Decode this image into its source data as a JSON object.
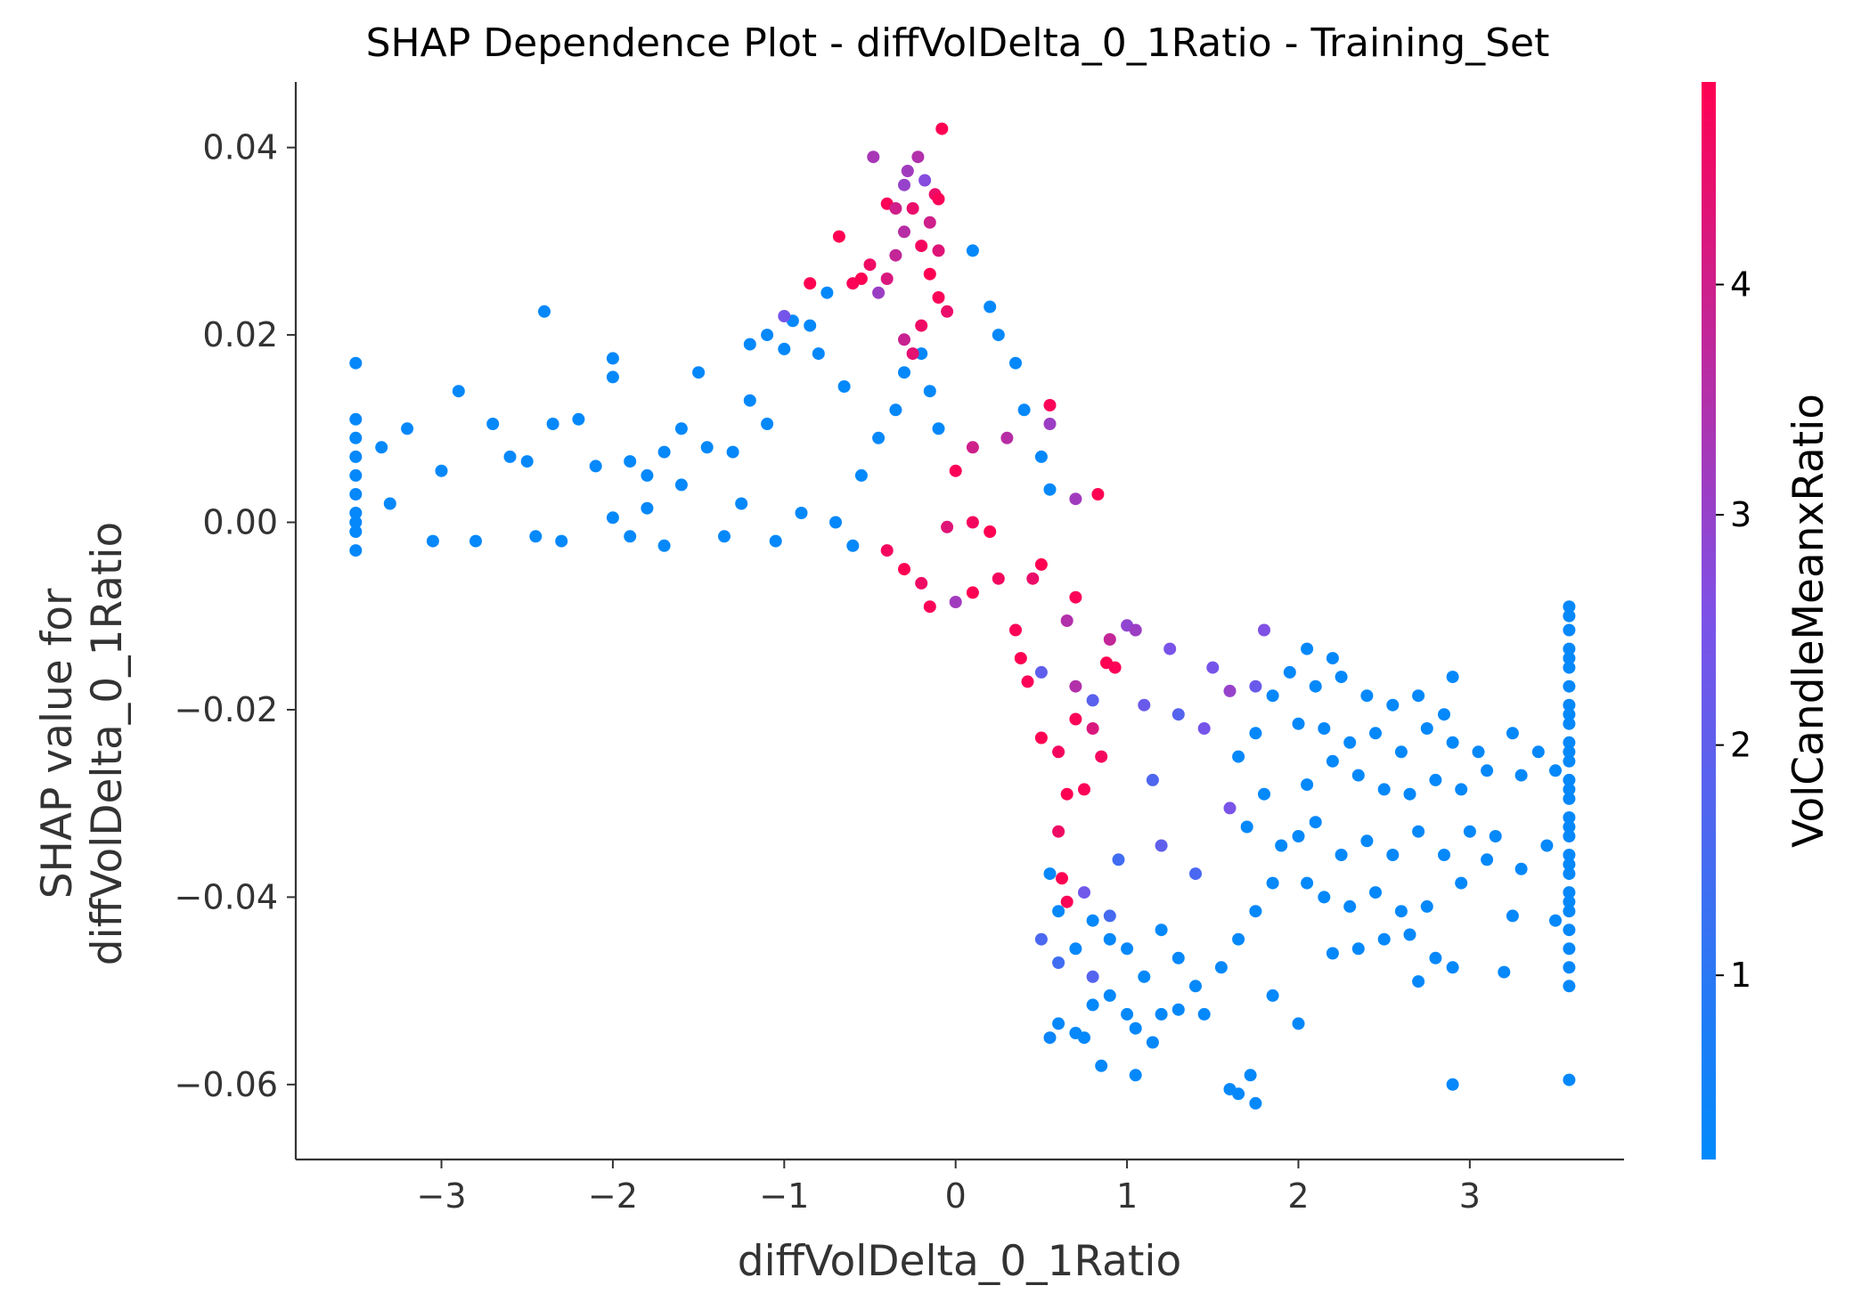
{
  "chart_data": {
    "type": "scatter",
    "title": "SHAP Dependence Plot - diffVolDelta_0_1Ratio - Training_Set",
    "xlabel": "diffVolDelta_0_1Ratio",
    "ylabel_line1": "SHAP value for",
    "ylabel_line2": "diffVolDelta_0_1Ratio",
    "colorbar_label": "VolCandleMeanxRatio",
    "xlim": [
      -3.85,
      3.9
    ],
    "ylim": [
      -0.068,
      0.047
    ],
    "x_ticks": [
      {
        "value": -3,
        "label": "−3"
      },
      {
        "value": -2,
        "label": "−2"
      },
      {
        "value": -1,
        "label": "−1"
      },
      {
        "value": 0,
        "label": "0"
      },
      {
        "value": 1,
        "label": "1"
      },
      {
        "value": 2,
        "label": "2"
      },
      {
        "value": 3,
        "label": "3"
      }
    ],
    "y_ticks": [
      {
        "value": 0.04,
        "label": "0.04"
      },
      {
        "value": 0.02,
        "label": "0.02"
      },
      {
        "value": 0.0,
        "label": "0.00"
      },
      {
        "value": -0.02,
        "label": "−0.02"
      },
      {
        "value": -0.04,
        "label": "−0.04"
      },
      {
        "value": -0.06,
        "label": "−0.06"
      }
    ],
    "colorbar": {
      "min": 0.2,
      "max": 4.88,
      "ticks": [
        {
          "value": 1,
          "label": "1"
        },
        {
          "value": 2,
          "label": "2"
        },
        {
          "value": 3,
          "label": "3"
        },
        {
          "value": 4,
          "label": "4"
        }
      ],
      "color_low": "#008afb",
      "color_mid": "#7c52e8",
      "color_high": "#ff0052"
    },
    "grid": false,
    "legend": "colorbar-right",
    "points": [
      [
        -3.5,
        0.017,
        0.3
      ],
      [
        -3.5,
        0.011,
        0.3
      ],
      [
        -3.5,
        0.009,
        0.3
      ],
      [
        -3.5,
        0.007,
        0.3
      ],
      [
        -3.5,
        0.005,
        0.3
      ],
      [
        -3.5,
        0.003,
        0.3
      ],
      [
        -3.5,
        0.0,
        0.3
      ],
      [
        -3.5,
        -0.003,
        0.3
      ],
      [
        -3.5,
        -0.001,
        0.3
      ],
      [
        -3.5,
        0.001,
        0.3
      ],
      [
        -3.35,
        0.008,
        0.3
      ],
      [
        -3.2,
        0.01,
        0.3
      ],
      [
        -3.3,
        0.002,
        0.3
      ],
      [
        -3.0,
        0.0055,
        0.3
      ],
      [
        -2.9,
        0.014,
        0.3
      ],
      [
        -3.05,
        -0.002,
        0.3
      ],
      [
        -2.8,
        -0.002,
        0.3
      ],
      [
        -2.7,
        0.0105,
        0.3
      ],
      [
        -2.6,
        0.007,
        0.3
      ],
      [
        -2.5,
        0.0065,
        0.3
      ],
      [
        -2.4,
        0.0225,
        0.3
      ],
      [
        -2.35,
        0.0105,
        0.3
      ],
      [
        -2.2,
        0.011,
        0.3
      ],
      [
        -2.3,
        -0.002,
        0.3
      ],
      [
        -2.45,
        -0.0015,
        0.3
      ],
      [
        -2.1,
        0.006,
        0.3
      ],
      [
        -2.0,
        0.0175,
        0.3
      ],
      [
        -2.0,
        0.0155,
        0.3
      ],
      [
        -2.0,
        0.0005,
        0.3
      ],
      [
        -1.9,
        0.0065,
        0.3
      ],
      [
        -1.8,
        0.005,
        0.3
      ],
      [
        -1.7,
        0.0075,
        0.3
      ],
      [
        -1.6,
        0.004,
        0.3
      ],
      [
        -1.5,
        0.016,
        0.3
      ],
      [
        -1.45,
        0.008,
        0.3
      ],
      [
        -1.3,
        0.0075,
        0.3
      ],
      [
        -1.2,
        0.013,
        0.3
      ],
      [
        -1.1,
        0.0105,
        0.3
      ],
      [
        -1.0,
        0.0185,
        0.3
      ],
      [
        -0.95,
        0.0215,
        0.3
      ],
      [
        -0.85,
        0.021,
        0.3
      ],
      [
        -0.8,
        0.018,
        0.3
      ],
      [
        -0.75,
        0.0245,
        0.3
      ],
      [
        -0.65,
        0.0145,
        0.3
      ],
      [
        -1.1,
        0.02,
        0.3
      ],
      [
        -1.2,
        0.019,
        0.3
      ],
      [
        -1.6,
        0.01,
        0.3
      ],
      [
        -1.35,
        -0.0015,
        0.3
      ],
      [
        -1.7,
        -0.0025,
        0.3
      ],
      [
        -1.8,
        0.0015,
        0.3
      ],
      [
        -1.9,
        -0.0015,
        0.3
      ],
      [
        -1.25,
        0.002,
        0.3
      ],
      [
        -1.05,
        -0.002,
        0.3
      ],
      [
        -0.9,
        0.001,
        0.3
      ],
      [
        -0.7,
        0.0,
        0.3
      ],
      [
        -0.6,
        -0.0025,
        0.3
      ],
      [
        -0.55,
        0.005,
        0.3
      ],
      [
        -0.45,
        0.009,
        0.3
      ],
      [
        -0.35,
        0.012,
        0.3
      ],
      [
        -0.3,
        0.016,
        0.3
      ],
      [
        -0.2,
        0.018,
        0.3
      ],
      [
        -0.15,
        0.014,
        0.3
      ],
      [
        -0.1,
        0.01,
        0.3
      ],
      [
        0.1,
        0.029,
        0.3
      ],
      [
        0.2,
        0.023,
        0.3
      ],
      [
        0.25,
        0.02,
        0.3
      ],
      [
        0.35,
        0.017,
        0.3
      ],
      [
        0.4,
        0.012,
        0.3
      ],
      [
        0.5,
        0.007,
        0.3
      ],
      [
        0.55,
        0.0035,
        0.3
      ],
      [
        -0.68,
        0.0305,
        4.9
      ],
      [
        -0.6,
        0.0255,
        4.8
      ],
      [
        -0.55,
        0.026,
        4.9
      ],
      [
        -0.5,
        0.0275,
        4.6
      ],
      [
        -0.48,
        0.039,
        3.3
      ],
      [
        -0.4,
        0.034,
        4.8
      ],
      [
        -0.35,
        0.0335,
        4.0
      ],
      [
        -0.3,
        0.036,
        3.0
      ],
      [
        -0.28,
        0.0375,
        3.2
      ],
      [
        -0.22,
        0.039,
        3.5
      ],
      [
        -0.18,
        0.0365,
        2.7
      ],
      [
        -0.12,
        0.035,
        4.5
      ],
      [
        -0.08,
        0.042,
        4.9
      ],
      [
        -0.1,
        0.0345,
        4.8
      ],
      [
        -0.25,
        0.0335,
        4.5
      ],
      [
        -0.15,
        0.032,
        4.0
      ],
      [
        -0.3,
        0.031,
        3.6
      ],
      [
        -0.2,
        0.0295,
        4.7
      ],
      [
        -0.1,
        0.029,
        4.3
      ],
      [
        -0.35,
        0.0285,
        3.8
      ],
      [
        -0.4,
        0.026,
        4.2
      ],
      [
        -0.45,
        0.0245,
        3.1
      ],
      [
        -0.15,
        0.0265,
        4.9
      ],
      [
        -0.1,
        0.024,
        4.8
      ],
      [
        -0.05,
        0.0225,
        4.5
      ],
      [
        -0.2,
        0.021,
        4.6
      ],
      [
        -0.3,
        0.0195,
        3.9
      ],
      [
        -0.25,
        0.018,
        4.4
      ],
      [
        -0.85,
        0.0255,
        4.9
      ],
      [
        -1.0,
        0.022,
        2.4
      ],
      [
        0.55,
        0.0125,
        4.8
      ],
      [
        0.55,
        0.0105,
        3.1
      ],
      [
        0.7,
        0.0025,
        3.2
      ],
      [
        0.83,
        0.003,
        4.9
      ],
      [
        0.3,
        0.009,
        3.6
      ],
      [
        0.1,
        0.008,
        4.0
      ],
      [
        0.0,
        0.0055,
        4.8
      ],
      [
        -0.05,
        -0.0005,
        4.3
      ],
      [
        0.1,
        0.0,
        4.7
      ],
      [
        0.2,
        -0.001,
        4.9
      ],
      [
        -0.4,
        -0.003,
        4.7
      ],
      [
        -0.3,
        -0.005,
        4.9
      ],
      [
        -0.2,
        -0.0065,
        4.6
      ],
      [
        -0.15,
        -0.009,
        4.8
      ],
      [
        0.0,
        -0.0085,
        3.2
      ],
      [
        0.1,
        -0.0075,
        4.9
      ],
      [
        0.25,
        -0.006,
        4.7
      ],
      [
        0.35,
        -0.0115,
        4.8
      ],
      [
        0.38,
        -0.0145,
        4.9
      ],
      [
        0.42,
        -0.017,
        4.8
      ],
      [
        0.5,
        -0.023,
        4.9
      ],
      [
        0.6,
        -0.0245,
        4.7
      ],
      [
        0.7,
        -0.021,
        4.8
      ],
      [
        0.65,
        -0.029,
        4.9
      ],
      [
        0.75,
        -0.0285,
        4.8
      ],
      [
        0.6,
        -0.033,
        4.6
      ],
      [
        0.62,
        -0.038,
        4.9
      ],
      [
        0.65,
        -0.0405,
        4.8
      ],
      [
        0.88,
        -0.015,
        4.9
      ],
      [
        0.93,
        -0.0155,
        4.8
      ],
      [
        0.8,
        -0.022,
        4.2
      ],
      [
        0.85,
        -0.025,
        4.7
      ],
      [
        0.7,
        -0.008,
        4.8
      ],
      [
        0.65,
        -0.0105,
        3.5
      ],
      [
        0.5,
        -0.0045,
        4.9
      ],
      [
        0.45,
        -0.006,
        4.5
      ],
      [
        0.9,
        -0.0125,
        3.8
      ],
      [
        1.0,
        -0.011,
        2.9
      ],
      [
        1.05,
        -0.0115,
        3.1
      ],
      [
        1.25,
        -0.0135,
        2.5
      ],
      [
        1.5,
        -0.0155,
        2.4
      ],
      [
        1.6,
        -0.018,
        3.0
      ],
      [
        1.75,
        -0.0175,
        2.2
      ],
      [
        1.8,
        -0.0115,
        2.6
      ],
      [
        0.5,
        -0.016,
        2.0
      ],
      [
        0.7,
        -0.0175,
        3.5
      ],
      [
        0.8,
        -0.019,
        1.9
      ],
      [
        1.1,
        -0.0195,
        2.2
      ],
      [
        1.3,
        -0.0205,
        1.8
      ],
      [
        1.45,
        -0.022,
        2.4
      ],
      [
        1.15,
        -0.0275,
        1.7
      ],
      [
        1.2,
        -0.0345,
        2.0
      ],
      [
        1.4,
        -0.0375,
        1.6
      ],
      [
        1.6,
        -0.0305,
        2.5
      ],
      [
        0.9,
        -0.042,
        1.5
      ],
      [
        0.95,
        -0.036,
        1.4
      ],
      [
        0.75,
        -0.0395,
        2.3
      ],
      [
        0.5,
        -0.0445,
        1.6
      ],
      [
        0.6,
        -0.047,
        1.4
      ],
      [
        0.8,
        -0.0485,
        1.8
      ],
      [
        0.55,
        -0.055,
        0.4
      ],
      [
        0.6,
        -0.0535,
        0.3
      ],
      [
        0.7,
        -0.0545,
        0.3
      ],
      [
        0.75,
        -0.055,
        0.3
      ],
      [
        0.8,
        -0.0515,
        0.3
      ],
      [
        0.9,
        -0.0505,
        0.3
      ],
      [
        1.0,
        -0.0525,
        0.3
      ],
      [
        1.05,
        -0.054,
        0.3
      ],
      [
        1.15,
        -0.0555,
        0.3
      ],
      [
        1.3,
        -0.052,
        0.3
      ],
      [
        0.85,
        -0.058,
        0.3
      ],
      [
        1.05,
        -0.059,
        0.3
      ],
      [
        1.6,
        -0.0605,
        0.3
      ],
      [
        1.65,
        -0.061,
        0.3
      ],
      [
        1.72,
        -0.059,
        0.3
      ],
      [
        1.75,
        -0.062,
        0.3
      ],
      [
        1.2,
        -0.0525,
        0.3
      ],
      [
        1.45,
        -0.0525,
        0.3
      ],
      [
        1.85,
        -0.0505,
        0.3
      ],
      [
        2.0,
        -0.0535,
        0.3
      ],
      [
        2.2,
        -0.046,
        0.3
      ],
      [
        2.35,
        -0.0455,
        0.3
      ],
      [
        2.5,
        -0.0445,
        0.3
      ],
      [
        2.65,
        -0.044,
        0.3
      ],
      [
        2.7,
        -0.049,
        0.3
      ],
      [
        2.8,
        -0.0465,
        0.3
      ],
      [
        2.9,
        -0.0475,
        0.3
      ],
      [
        2.9,
        -0.06,
        0.3
      ],
      [
        3.2,
        -0.048,
        0.3
      ],
      [
        3.25,
        -0.042,
        0.3
      ],
      [
        2.05,
        -0.0385,
        0.3
      ],
      [
        2.15,
        -0.04,
        0.3
      ],
      [
        2.3,
        -0.041,
        0.3
      ],
      [
        2.45,
        -0.0395,
        0.3
      ],
      [
        2.6,
        -0.0415,
        0.3
      ],
      [
        2.75,
        -0.041,
        0.3
      ],
      [
        2.95,
        -0.0385,
        0.3
      ],
      [
        3.1,
        -0.036,
        0.3
      ],
      [
        3.3,
        -0.037,
        0.3
      ],
      [
        3.5,
        -0.0425,
        0.3
      ],
      [
        2.0,
        -0.0335,
        0.3
      ],
      [
        2.1,
        -0.032,
        0.3
      ],
      [
        2.25,
        -0.0355,
        0.3
      ],
      [
        2.4,
        -0.034,
        0.3
      ],
      [
        2.55,
        -0.0355,
        0.3
      ],
      [
        2.7,
        -0.033,
        0.3
      ],
      [
        2.85,
        -0.0355,
        0.3
      ],
      [
        3.0,
        -0.033,
        0.3
      ],
      [
        3.15,
        -0.0335,
        0.3
      ],
      [
        3.45,
        -0.0345,
        0.3
      ],
      [
        2.05,
        -0.028,
        0.3
      ],
      [
        2.2,
        -0.0255,
        0.3
      ],
      [
        2.35,
        -0.027,
        0.3
      ],
      [
        2.5,
        -0.0285,
        0.3
      ],
      [
        2.65,
        -0.029,
        0.3
      ],
      [
        2.8,
        -0.0275,
        0.3
      ],
      [
        2.95,
        -0.0285,
        0.3
      ],
      [
        3.1,
        -0.0265,
        0.3
      ],
      [
        3.3,
        -0.027,
        0.3
      ],
      [
        3.5,
        -0.0265,
        0.3
      ],
      [
        2.0,
        -0.0215,
        0.3
      ],
      [
        2.15,
        -0.022,
        0.3
      ],
      [
        2.3,
        -0.0235,
        0.3
      ],
      [
        2.45,
        -0.0225,
        0.3
      ],
      [
        2.6,
        -0.0245,
        0.3
      ],
      [
        2.75,
        -0.022,
        0.3
      ],
      [
        2.9,
        -0.0235,
        0.3
      ],
      [
        3.05,
        -0.0245,
        0.3
      ],
      [
        3.25,
        -0.0225,
        0.3
      ],
      [
        3.4,
        -0.0245,
        0.3
      ],
      [
        2.1,
        -0.0175,
        0.3
      ],
      [
        2.25,
        -0.0165,
        0.3
      ],
      [
        2.4,
        -0.0185,
        0.3
      ],
      [
        2.55,
        -0.0195,
        0.3
      ],
      [
        2.7,
        -0.0185,
        0.3
      ],
      [
        2.85,
        -0.0205,
        0.3
      ],
      [
        2.9,
        -0.0165,
        0.3
      ],
      [
        2.05,
        -0.0135,
        0.3
      ],
      [
        2.2,
        -0.0145,
        0.3
      ],
      [
        1.95,
        -0.016,
        0.3
      ],
      [
        1.85,
        -0.0185,
        0.3
      ],
      [
        1.75,
        -0.0225,
        0.3
      ],
      [
        1.65,
        -0.025,
        0.3
      ],
      [
        1.8,
        -0.029,
        0.3
      ],
      [
        1.7,
        -0.0325,
        0.3
      ],
      [
        1.9,
        -0.0345,
        0.3
      ],
      [
        1.85,
        -0.0385,
        0.3
      ],
      [
        1.75,
        -0.0415,
        0.3
      ],
      [
        1.65,
        -0.0445,
        0.3
      ],
      [
        1.55,
        -0.0475,
        0.3
      ],
      [
        1.4,
        -0.0495,
        0.3
      ],
      [
        1.3,
        -0.0465,
        0.3
      ],
      [
        1.2,
        -0.0435,
        0.3
      ],
      [
        1.1,
        -0.0485,
        0.3
      ],
      [
        1.0,
        -0.0455,
        0.3
      ],
      [
        0.9,
        -0.0445,
        0.3
      ],
      [
        0.8,
        -0.0425,
        0.3
      ],
      [
        0.7,
        -0.0455,
        0.3
      ],
      [
        0.6,
        -0.0415,
        0.3
      ],
      [
        0.55,
        -0.0375,
        0.3
      ],
      [
        3.58,
        -0.009,
        0.3
      ],
      [
        3.58,
        -0.0115,
        0.3
      ],
      [
        3.58,
        -0.0135,
        0.3
      ],
      [
        3.58,
        -0.0155,
        0.3
      ],
      [
        3.58,
        -0.0175,
        0.3
      ],
      [
        3.58,
        -0.0195,
        0.3
      ],
      [
        3.58,
        -0.0215,
        0.3
      ],
      [
        3.58,
        -0.0235,
        0.3
      ],
      [
        3.58,
        -0.0255,
        0.3
      ],
      [
        3.58,
        -0.0275,
        0.3
      ],
      [
        3.58,
        -0.0295,
        0.3
      ],
      [
        3.58,
        -0.0315,
        0.3
      ],
      [
        3.58,
        -0.0335,
        0.3
      ],
      [
        3.58,
        -0.0355,
        0.3
      ],
      [
        3.58,
        -0.0375,
        0.3
      ],
      [
        3.58,
        -0.0395,
        0.3
      ],
      [
        3.58,
        -0.0415,
        0.3
      ],
      [
        3.58,
        -0.0435,
        0.3
      ],
      [
        3.58,
        -0.0475,
        0.3
      ],
      [
        3.58,
        -0.0495,
        0.3
      ],
      [
        3.58,
        -0.0595,
        0.3
      ],
      [
        3.58,
        -0.01,
        0.3
      ],
      [
        3.58,
        -0.0145,
        0.3
      ],
      [
        3.58,
        -0.0285,
        0.3
      ],
      [
        3.58,
        -0.0325,
        0.3
      ],
      [
        3.58,
        -0.0365,
        0.3
      ],
      [
        3.58,
        -0.0405,
        0.3
      ],
      [
        3.58,
        -0.0455,
        0.3
      ],
      [
        3.58,
        -0.0245,
        0.3
      ],
      [
        3.58,
        -0.0205,
        0.3
      ]
    ]
  }
}
